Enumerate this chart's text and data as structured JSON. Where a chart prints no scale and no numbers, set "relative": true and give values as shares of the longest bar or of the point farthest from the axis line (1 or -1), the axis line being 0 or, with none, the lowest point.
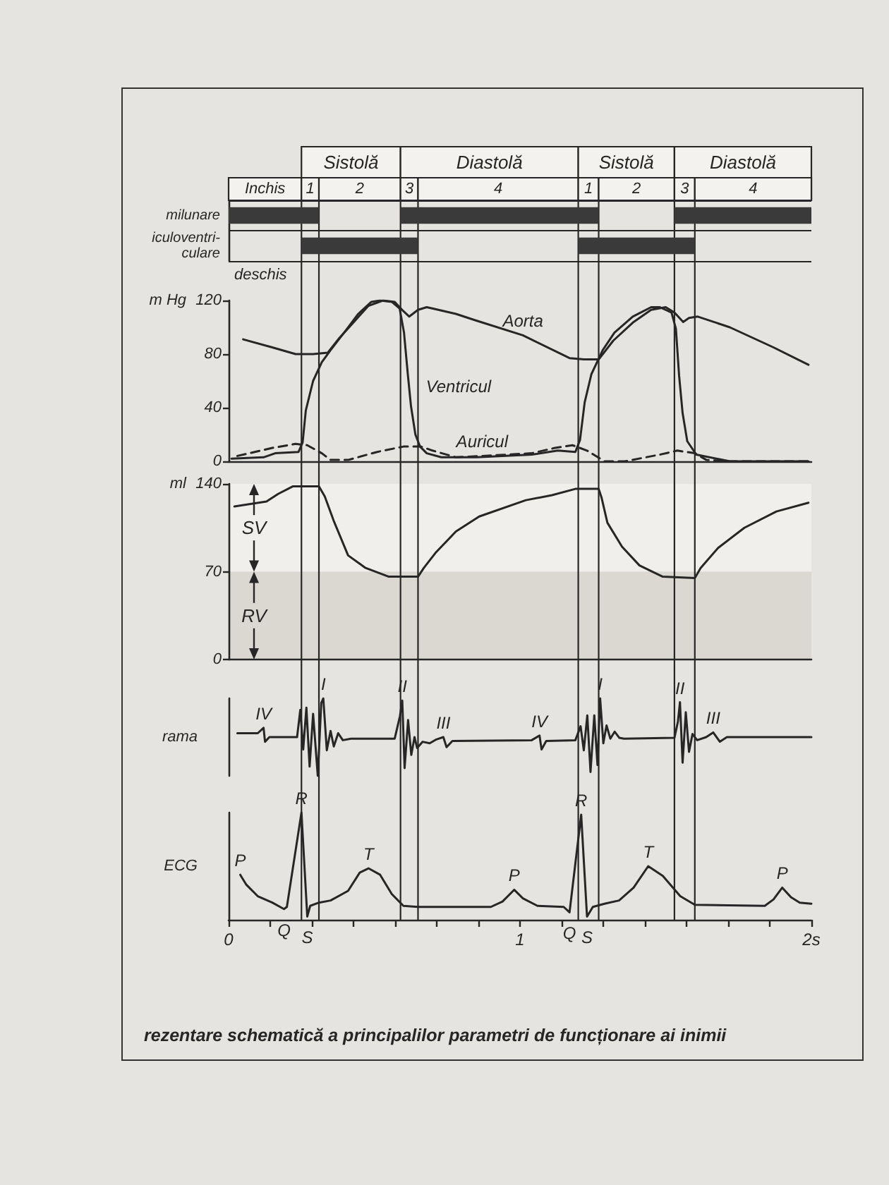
{
  "chart_data": [
    {
      "type": "bar",
      "orientation": "horizontal",
      "categories": [
        "milunare",
        "iculoventri-\nculare"
      ],
      "tick_labels": "y",
      "grid": "y",
      "xlim": [
        0,
        2
      ],
      "series": [
        {
          "color": "#3a3a3a",
          "base": [
            0,
            0.25
          ],
          "values": [
            0.31,
            0.4
          ]
        },
        {
          "color": "#3a3a3a",
          "base": [
            0.59,
            1.2
          ],
          "values": [
            0.68,
            0.4
          ]
        },
        {
          "color": "#3a3a3a",
          "base": [
            1.53,
            null
          ],
          "values": [
            0.47,
            null
          ]
        }
      ],
      "bands": [
        {
          "axis": "x",
          "from": 0,
          "to": 0.25,
          "label": "Inchis"
        },
        {
          "axis": "x",
          "from": 0.25,
          "to": 0.31,
          "label": "1"
        },
        {
          "axis": "x",
          "from": 0.31,
          "to": 0.59,
          "label": "2"
        },
        {
          "axis": "x",
          "from": 0.59,
          "to": 0.65,
          "label": "3"
        },
        {
          "axis": "x",
          "from": 0.65,
          "to": 1.2,
          "label": "4"
        },
        {
          "axis": "x",
          "from": 1.2,
          "to": 1.27,
          "label": "1"
        },
        {
          "axis": "x",
          "from": 1.27,
          "to": 1.53,
          "label": "2"
        },
        {
          "axis": "x",
          "from": 1.53,
          "to": 1.6,
          "label": "3"
        },
        {
          "axis": "x",
          "from": 1.6,
          "to": 2,
          "label": "4"
        },
        {
          "axis": "x",
          "from": 0.25,
          "to": 0.59,
          "label": "Sistolă"
        },
        {
          "axis": "x",
          "from": 0.59,
          "to": 1.2,
          "label": "Diastolă"
        },
        {
          "axis": "x",
          "from": 1.2,
          "to": 1.53,
          "label": "Sistolă"
        },
        {
          "axis": "x",
          "from": 1.53,
          "to": 2,
          "label": "Diastolă"
        }
      ],
      "annotations": [
        "deschis"
      ],
      "ref_lines": [
        {
          "axis": "x",
          "value": 0.25
        },
        {
          "axis": "x",
          "value": 0.31
        },
        {
          "axis": "x",
          "value": 0.59
        },
        {
          "axis": "x",
          "value": 0.65
        },
        {
          "axis": "x",
          "value": 1.2
        },
        {
          "axis": "x",
          "value": 1.27
        },
        {
          "axis": "x",
          "value": 1.53
        },
        {
          "axis": "x",
          "value": 1.6
        }
      ]
    },
    {
      "type": "line",
      "ylabel": "m Hg",
      "xlim": [
        0,
        2
      ],
      "ylim": [
        0,
        120
      ],
      "yticks": [
        0,
        40,
        80,
        120
      ],
      "tick_labels": "y",
      "series": [
        {
          "color": "#262626",
          "x": [
            0.05,
            0.15,
            0.23,
            0.29,
            0.34,
            0.38,
            0.43,
            0.48,
            0.53,
            0.57,
            0.6,
            0.62,
            0.65,
            0.68,
            0.72,
            0.78,
            0.85,
            1.01,
            1.17,
            1.22,
            1.27,
            1.32,
            1.39,
            1.45,
            1.5,
            1.53,
            1.56,
            1.58,
            1.61,
            1.72,
            1.87,
            1.99
          ],
          "values": [
            91,
            85,
            80,
            80,
            81,
            92,
            104,
            116,
            120,
            119,
            112,
            108,
            113,
            115,
            113,
            110,
            105,
            94,
            77,
            76,
            76,
            90,
            104,
            113,
            115,
            111,
            104,
            107,
            108,
            100,
            85,
            72
          ]
        },
        {
          "color": "#262626",
          "x": [
            0.01,
            0.12,
            0.16,
            0.24,
            0.254,
            0.265,
            0.29,
            0.32,
            0.35,
            0.4,
            0.445,
            0.49,
            0.52,
            0.56,
            0.587,
            0.602,
            0.615,
            0.626,
            0.641,
            0.657,
            0.68,
            0.73,
            0.85,
            1.04,
            1.13,
            1.19,
            1.206,
            1.222,
            1.245,
            1.284,
            1.324,
            1.387,
            1.45,
            1.48,
            1.52,
            1.535,
            1.546,
            1.558,
            1.574,
            1.605,
            1.72,
            1.99
          ],
          "values": [
            2,
            3,
            6,
            7,
            14,
            38,
            60,
            74,
            83,
            97,
            110,
            119,
            120,
            119,
            114,
            96,
            65,
            41,
            20,
            11,
            6,
            3,
            3,
            5,
            8,
            7,
            16,
            44,
            65,
            83,
            96,
            108,
            115,
            115,
            111,
            99,
            64,
            36,
            15,
            5,
            0,
            0
          ]
        },
        {
          "color": "#262626",
          "line_style": "dashed",
          "x": [
            0.03,
            0.15,
            0.23,
            0.27,
            0.32,
            0.35,
            0.41,
            0.51,
            0.6,
            0.66,
            0.7,
            0.78,
            0.87,
            1.04,
            1.12,
            1.18,
            1.23,
            1.29,
            1.36,
            1.48,
            1.54,
            1.6,
            1.64,
            1.72,
            1.99
          ],
          "values": [
            4,
            10,
            13,
            12,
            6,
            1,
            1,
            7,
            11,
            11,
            8,
            3,
            4,
            6,
            10,
            12,
            8,
            0,
            0,
            5,
            8,
            6,
            1,
            0,
            0
          ]
        }
      ],
      "annotations": [
        {
          "text": "Aorta",
          "x": 1.01,
          "y": 94
        },
        {
          "text": "Ventricul",
          "x": 0.619,
          "y": 56
        },
        {
          "text": "Auricul",
          "x": 0.87,
          "y": 4
        }
      ],
      "ref_lines": [
        {
          "axis": "x",
          "value": 0.25
        },
        {
          "axis": "x",
          "value": 0.31
        },
        {
          "axis": "x",
          "value": 0.59
        },
        {
          "axis": "x",
          "value": 0.65
        },
        {
          "axis": "x",
          "value": 1.2
        },
        {
          "axis": "x",
          "value": 1.27
        },
        {
          "axis": "x",
          "value": 1.53
        },
        {
          "axis": "x",
          "value": 1.6
        }
      ]
    },
    {
      "type": "line",
      "ylabel": "ml",
      "xlim": [
        0,
        2
      ],
      "ylim": [
        0,
        140
      ],
      "yticks": [
        0,
        70,
        140
      ],
      "tick_labels": "y",
      "series": [
        {
          "color": "#262626",
          "x": [
            0.02,
            0.13,
            0.17,
            0.22,
            0.31,
            0.33,
            0.36,
            0.41,
            0.47,
            0.55,
            0.65,
            0.67,
            0.71,
            0.78,
            0.86,
            1.02,
            1.11,
            1.19,
            1.27,
            1.28,
            1.3,
            1.35,
            1.41,
            1.49,
            1.6,
            1.62,
            1.68,
            1.77,
            1.88,
            1.99
          ],
          "values": [
            122,
            126,
            132,
            138,
            138,
            130,
            111,
            83,
            73,
            66,
            66,
            73,
            85,
            102,
            114,
            127,
            131,
            136,
            136,
            129,
            109,
            90,
            75,
            66,
            65,
            73,
            89,
            105,
            118,
            125
          ]
        }
      ],
      "bands": [
        {
          "axis": "y",
          "from": 70,
          "to": 140,
          "label": "SV"
        },
        {
          "axis": "y",
          "from": 0,
          "to": 70,
          "label": "RV"
        }
      ],
      "ref_lines": [
        {
          "axis": "x",
          "value": 0.25
        },
        {
          "axis": "x",
          "value": 0.31
        },
        {
          "axis": "x",
          "value": 0.59
        },
        {
          "axis": "x",
          "value": 0.65
        },
        {
          "axis": "x",
          "value": 1.2
        },
        {
          "axis": "x",
          "value": 1.27
        },
        {
          "axis": "x",
          "value": 1.53
        },
        {
          "axis": "x",
          "value": 1.6
        }
      ]
    },
    {
      "type": "line",
      "ylabel": "rama",
      "relative": true,
      "xlim": [
        0,
        2
      ],
      "tick_labels": false,
      "series": [
        {
          "color": "#262626",
          "x": [
            0.03,
            0.1,
            0.12,
            0.125,
            0.14,
            0.2,
            0.235,
            0.246,
            0.256,
            0.267,
            0.278,
            0.29,
            0.306,
            0.318,
            0.325,
            0.337,
            0.35,
            0.361,
            0.376,
            0.392,
            0.42,
            0.57,
            0.588,
            0.596,
            0.604,
            0.616,
            0.627,
            0.638,
            0.647,
            0.666,
            0.69,
            0.713,
            0.737,
            0.748,
            0.768,
            1.04,
            1.067,
            1.074,
            1.09,
            1.19,
            1.208,
            1.219,
            1.231,
            1.242,
            1.255,
            1.266,
            1.275,
            1.286,
            1.297,
            1.31,
            1.325,
            1.341,
            1.357,
            1.53,
            1.542,
            1.549,
            1.558,
            1.569,
            1.58,
            1.592,
            1.608,
            1.639,
            1.663,
            1.686,
            1.71,
            2
          ],
          "values": [
            0.55,
            0.55,
            0.62,
            0.44,
            0.5,
            0.5,
            0.5,
            0.85,
            0.34,
            0.88,
            0.12,
            0.8,
            0,
            0.94,
            1,
            0.33,
            0.58,
            0.38,
            0.55,
            0.46,
            0.48,
            0.48,
            0.77,
            0.97,
            0.1,
            0.72,
            0.27,
            0.5,
            0.36,
            0.44,
            0.42,
            0.47,
            0.5,
            0.37,
            0.45,
            0.46,
            0.52,
            0.34,
            0.45,
            0.46,
            0.64,
            0.33,
            0.78,
            0.05,
            0.78,
            0.14,
            1,
            0.42,
            0.65,
            0.48,
            0.57,
            0.49,
            0.48,
            0.49,
            0.7,
            0.95,
            0.17,
            0.82,
            0.31,
            0.54,
            0.46,
            0.5,
            0.56,
            0.44,
            0.5,
            0.5
          ]
        }
      ],
      "annotations": [
        {
          "text": "IV",
          "x": 0.12,
          "y": 0.62
        },
        {
          "text": "I",
          "x": 0.325,
          "y": 1
        },
        {
          "text": "II",
          "x": 0.596,
          "y": 0.97
        },
        {
          "text": "III",
          "x": 0.737,
          "y": 0.5
        },
        {
          "text": "IV",
          "x": 1.067,
          "y": 0.52
        },
        {
          "text": "I",
          "x": 1.275,
          "y": 1
        },
        {
          "text": "II",
          "x": 1.549,
          "y": 0.95
        },
        {
          "text": "III",
          "x": 1.663,
          "y": 0.56
        }
      ],
      "ref_lines": [
        {
          "axis": "x",
          "value": 0.25
        },
        {
          "axis": "x",
          "value": 0.31
        },
        {
          "axis": "x",
          "value": 0.59
        },
        {
          "axis": "x",
          "value": 0.65
        },
        {
          "axis": "x",
          "value": 1.2
        },
        {
          "axis": "x",
          "value": 1.27
        },
        {
          "axis": "x",
          "value": 1.53
        },
        {
          "axis": "x",
          "value": 1.6
        }
      ]
    },
    {
      "type": "line",
      "ylabel": "ECG",
      "relative": true,
      "xlim": [
        0,
        2
      ],
      "tick_labels": "x",
      "xticks": [
        0,
        {
          "value": 0.143,
          "label": null
        },
        {
          "value": 0.286,
          "label": null
        },
        {
          "value": 0.429,
          "label": null
        },
        {
          "value": 0.571,
          "label": null
        },
        {
          "value": 0.714,
          "label": null
        },
        {
          "value": 0.857,
          "label": null
        },
        1,
        {
          "value": 1.143,
          "label": null
        },
        {
          "value": 1.286,
          "label": null
        },
        {
          "value": 1.429,
          "label": null
        },
        {
          "value": 1.571,
          "label": null
        },
        {
          "value": 1.714,
          "label": null
        },
        {
          "value": 1.857,
          "label": null
        },
        {
          "value": 2,
          "label": "2s"
        }
      ],
      "series": [
        {
          "color": "#262626",
          "x": [
            0.04,
            0.06,
            0.1,
            0.15,
            0.19,
            0.2,
            0.25,
            0.27,
            0.28,
            0.31,
            0.35,
            0.41,
            0.45,
            0.48,
            0.52,
            0.56,
            0.6,
            0.65,
            0.9,
            0.94,
            0.98,
            1.01,
            1.06,
            1.15,
            1.17,
            1.21,
            1.23,
            1.25,
            1.29,
            1.34,
            1.39,
            1.44,
            1.49,
            1.55,
            1.6,
            1.84,
            1.87,
            1.9,
            1.93,
            1.96,
            2
          ],
          "values": [
            0.42,
            0.33,
            0.22,
            0.16,
            0.1,
            0.12,
            1,
            0.03,
            0.13,
            0.16,
            0.18,
            0.27,
            0.44,
            0.48,
            0.42,
            0.24,
            0.13,
            0.12,
            0.12,
            0.17,
            0.28,
            0.2,
            0.13,
            0.12,
            0.07,
            0.98,
            0.03,
            0.12,
            0.15,
            0.18,
            0.3,
            0.5,
            0.41,
            0.22,
            0.14,
            0.13,
            0.19,
            0.3,
            0.21,
            0.16,
            0.15
          ]
        }
      ],
      "annotations": [
        {
          "text": "P",
          "x": 0.04,
          "y": 0.42
        },
        {
          "text": "Q",
          "x": 0.19,
          "y": 0.1
        },
        {
          "text": "R",
          "x": 0.25,
          "y": 1
        },
        {
          "text": "S",
          "x": 0.27,
          "y": 0.03
        },
        {
          "text": "T",
          "x": 0.48,
          "y": 0.48
        },
        {
          "text": "P",
          "x": 0.98,
          "y": 0.28
        },
        {
          "text": "Q",
          "x": 1.17,
          "y": 0.07
        },
        {
          "text": "R",
          "x": 1.21,
          "y": 0.98
        },
        {
          "text": "S",
          "x": 1.23,
          "y": 0.03
        },
        {
          "text": "T",
          "x": 1.44,
          "y": 0.5
        },
        {
          "text": "P",
          "x": 1.9,
          "y": 0.3
        },
        "rezentare schematică a principalilor parametri de funcționare ai inimii"
      ],
      "ref_lines": [
        {
          "axis": "x",
          "value": 0.25
        },
        {
          "axis": "x",
          "value": 0.31
        },
        {
          "axis": "x",
          "value": 0.59
        },
        {
          "axis": "x",
          "value": 0.65
        },
        {
          "axis": "x",
          "value": 1.2
        },
        {
          "axis": "x",
          "value": 1.27
        },
        {
          "axis": "x",
          "value": 1.53
        },
        {
          "axis": "x",
          "value": 1.6
        }
      ]
    }
  ]
}
